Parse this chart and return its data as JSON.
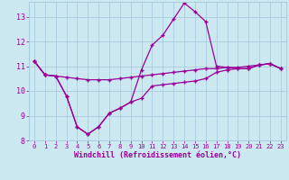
{
  "xlabel": "Windchill (Refroidissement éolien,°C)",
  "background_color": "#cce8f0",
  "grid_color": "#aaccdd",
  "line_color": "#990099",
  "hours": [
    0,
    1,
    2,
    3,
    4,
    5,
    6,
    7,
    8,
    9,
    10,
    11,
    12,
    13,
    14,
    15,
    16,
    17,
    18,
    19,
    20,
    21,
    22,
    23
  ],
  "line1": [
    11.2,
    10.65,
    10.6,
    10.55,
    10.5,
    10.45,
    10.45,
    10.45,
    10.5,
    10.55,
    10.6,
    10.65,
    10.7,
    10.75,
    10.8,
    10.85,
    10.9,
    10.9,
    10.95,
    10.95,
    11.0,
    11.05,
    11.1,
    10.9
  ],
  "line2": [
    11.2,
    10.65,
    10.6,
    9.8,
    8.55,
    8.25,
    8.55,
    9.1,
    9.3,
    9.55,
    10.85,
    11.85,
    12.25,
    12.9,
    13.55,
    13.2,
    12.8,
    11.0,
    10.95,
    10.9,
    10.9,
    11.05,
    11.1,
    10.9
  ],
  "line3": [
    11.2,
    10.65,
    10.6,
    9.8,
    8.55,
    8.25,
    8.55,
    9.1,
    9.3,
    9.55,
    9.7,
    10.2,
    10.25,
    10.3,
    10.35,
    10.4,
    10.5,
    10.75,
    10.85,
    10.9,
    10.9,
    11.05,
    11.1,
    10.9
  ],
  "ylim": [
    8.0,
    13.6
  ],
  "yticks": [
    8,
    9,
    10,
    11,
    12,
    13
  ],
  "xticks": [
    0,
    1,
    2,
    3,
    4,
    5,
    6,
    7,
    8,
    9,
    10,
    11,
    12,
    13,
    14,
    15,
    16,
    17,
    18,
    19,
    20,
    21,
    22,
    23
  ]
}
